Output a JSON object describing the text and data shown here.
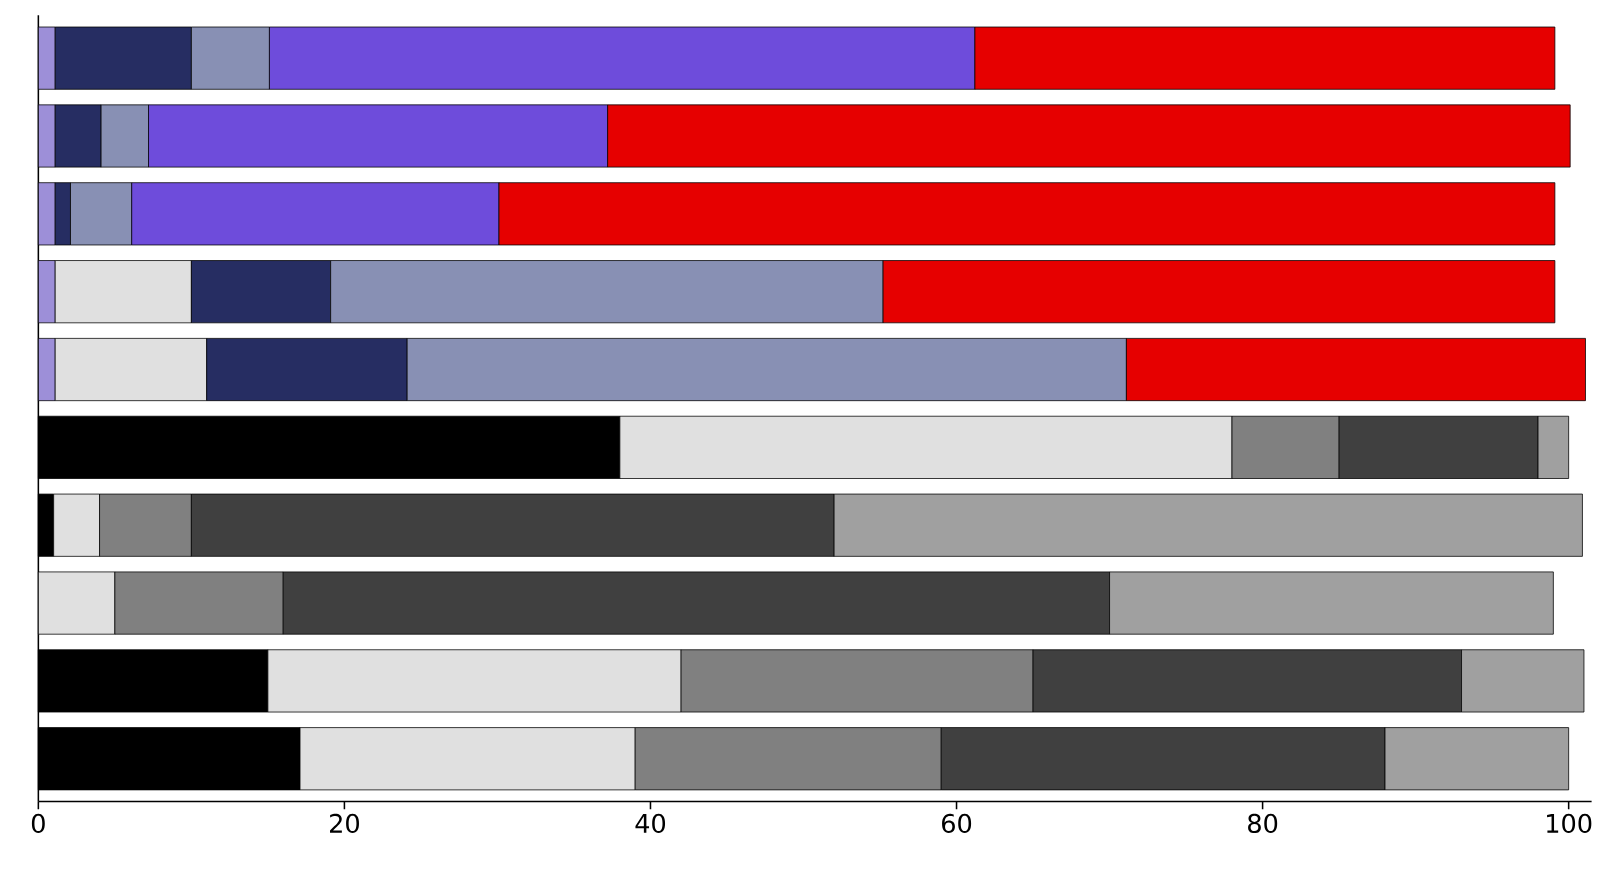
{
  "chart_data": {
    "type": "bar",
    "orientation": "horizontal",
    "stacked": true,
    "categories": [
      null,
      null,
      null,
      null,
      null,
      null,
      null,
      null,
      null,
      null
    ],
    "xlim": [
      0,
      101.5
    ],
    "xticks": [
      0,
      20,
      40,
      60,
      80,
      100
    ],
    "grid": false,
    "series": [
      {
        "color": "#9d8fd8",
        "values": [
          1.1,
          1.1,
          1.1,
          1.1,
          1.1,
          null,
          null,
          null,
          null,
          null
        ]
      },
      {
        "color": "#000000",
        "values": [
          null,
          null,
          null,
          null,
          null,
          38,
          1,
          null,
          15,
          17.1
        ]
      },
      {
        "color": "#e0e0e0",
        "values": [
          null,
          null,
          null,
          8.9,
          9.9,
          40,
          3,
          5,
          27,
          21.9
        ]
      },
      {
        "color": "#262d62",
        "values": [
          8.9,
          3.0,
          1.0,
          9.1,
          13.1,
          null,
          null,
          null,
          null,
          null
        ]
      },
      {
        "color": "#808080",
        "values": [
          null,
          null,
          null,
          null,
          null,
          7,
          6,
          11,
          23,
          20
        ]
      },
      {
        "color": "#8890b4",
        "values": [
          5.1,
          3.1,
          4.0,
          36.1,
          47.0,
          null,
          null,
          null,
          null,
          null
        ]
      },
      {
        "color": "#404040",
        "values": [
          null,
          null,
          null,
          null,
          null,
          13,
          42,
          54,
          28,
          29
        ]
      },
      {
        "color": "#6e4cdb",
        "values": [
          46.1,
          30.0,
          24.0,
          null,
          null,
          null,
          null,
          null,
          null,
          null
        ]
      },
      {
        "color": "#a0a0a0",
        "values": [
          null,
          null,
          null,
          null,
          null,
          2,
          48.9,
          29,
          8,
          12
        ]
      },
      {
        "color": "#e60000",
        "values": [
          37.9,
          62.9,
          69.0,
          43.9,
          30.0,
          null,
          null,
          null,
          null,
          null
        ]
      }
    ]
  }
}
